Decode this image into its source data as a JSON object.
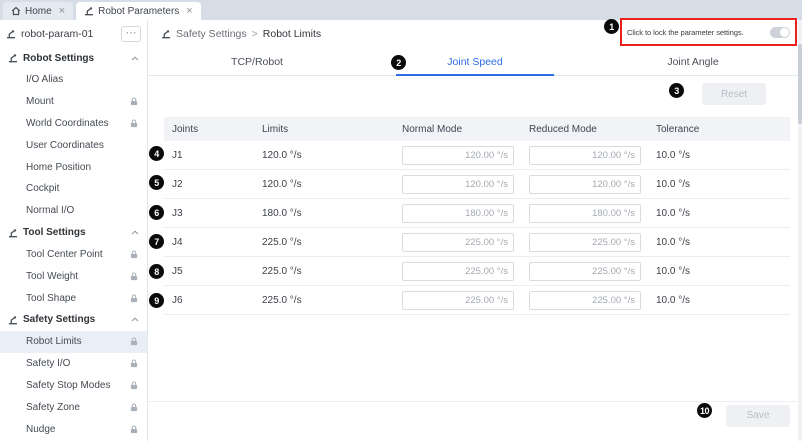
{
  "window_tabs": [
    {
      "label": "Home",
      "icon": "home-icon",
      "active": false,
      "close": "×"
    },
    {
      "label": "Robot Parameters",
      "icon": "robot-icon",
      "active": true,
      "close": "×"
    }
  ],
  "sidebar": {
    "param_name": "robot-param-01",
    "more_icon": "⋯",
    "sections": [
      {
        "label": "Robot Settings",
        "icon": "robot-icon",
        "collapsed": false,
        "items": [
          {
            "label": "I/O Alias",
            "locked": false,
            "selected": false
          },
          {
            "label": "Mount",
            "locked": true,
            "selected": false
          },
          {
            "label": "World Coordinates",
            "locked": true,
            "selected": false
          },
          {
            "label": "User Coordinates",
            "locked": false,
            "selected": false
          },
          {
            "label": "Home Position",
            "locked": false,
            "selected": false
          },
          {
            "label": "Cockpit",
            "locked": false,
            "selected": false
          },
          {
            "label": "Normal I/O",
            "locked": false,
            "selected": false
          }
        ]
      },
      {
        "label": "Tool Settings",
        "icon": "robot-icon",
        "collapsed": false,
        "items": [
          {
            "label": "Tool Center Point",
            "locked": true,
            "selected": false
          },
          {
            "label": "Tool Weight",
            "locked": true,
            "selected": false
          },
          {
            "label": "Tool Shape",
            "locked": true,
            "selected": false
          }
        ]
      },
      {
        "label": "Safety Settings",
        "icon": "robot-icon",
        "collapsed": false,
        "items": [
          {
            "label": "Robot Limits",
            "locked": true,
            "selected": true
          },
          {
            "label": "Safety I/O",
            "locked": true,
            "selected": false
          },
          {
            "label": "Safety Stop Modes",
            "locked": true,
            "selected": false
          },
          {
            "label": "Safety Zone",
            "locked": true,
            "selected": false
          },
          {
            "label": "Nudge",
            "locked": true,
            "selected": false
          }
        ]
      }
    ]
  },
  "breadcrumb": {
    "section": "Safety Settings",
    "separator": ">",
    "page": "Robot Limits"
  },
  "lock_banner": {
    "label": "Click to lock the parameter settings.",
    "toggle_state": "off"
  },
  "content_tabs": [
    {
      "label": "TCP/Robot",
      "active": false
    },
    {
      "label": "Joint Speed",
      "active": true
    },
    {
      "label": "Joint Angle",
      "active": false
    }
  ],
  "buttons": {
    "reset": "Reset",
    "save": "Save"
  },
  "table": {
    "headers": [
      "Joints",
      "Limits",
      "Normal Mode",
      "Reduced Mode",
      "Tolerance"
    ],
    "rows": [
      {
        "joint": "J1",
        "limit": "120.0 °/s",
        "normal_mode": "120.00 °/s",
        "reduced_mode": "120.00 °/s",
        "tolerance": "10.0 °/s"
      },
      {
        "joint": "J2",
        "limit": "120.0 °/s",
        "normal_mode": "120.00 °/s",
        "reduced_mode": "120.00 °/s",
        "tolerance": "10.0 °/s"
      },
      {
        "joint": "J3",
        "limit": "180.0 °/s",
        "normal_mode": "180.00 °/s",
        "reduced_mode": "180.00 °/s",
        "tolerance": "10.0 °/s"
      },
      {
        "joint": "J4",
        "limit": "225.0 °/s",
        "normal_mode": "225.00 °/s",
        "reduced_mode": "225.00 °/s",
        "tolerance": "10.0 °/s"
      },
      {
        "joint": "J5",
        "limit": "225.0 °/s",
        "normal_mode": "225.00 °/s",
        "reduced_mode": "225.00 °/s",
        "tolerance": "10.0 °/s"
      },
      {
        "joint": "J6",
        "limit": "225.0 °/s",
        "normal_mode": "225.00 °/s",
        "reduced_mode": "225.00 °/s",
        "tolerance": "10.0 °/s"
      }
    ]
  },
  "annotations": {
    "labels": [
      "1",
      "2",
      "3",
      "4",
      "5",
      "6",
      "7",
      "8",
      "9",
      "10"
    ]
  },
  "colors": {
    "accent": "#2e6be6",
    "annotation_badge": "#0a0a0a",
    "highlight_box": "#e8211d"
  }
}
